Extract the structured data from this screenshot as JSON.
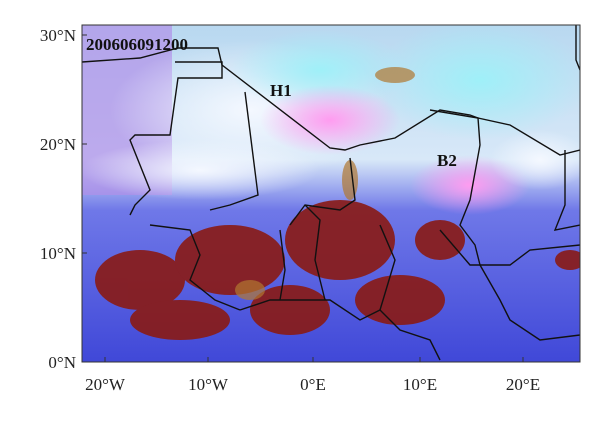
{
  "map": {
    "timestamp": "200606091200",
    "labels": [
      "H1",
      "B2"
    ],
    "lat_labels": [
      "30°N",
      "20°N",
      "10°N",
      "0°N"
    ],
    "lon_labels": [
      "20°W",
      "10°W",
      "0°E",
      "10°E",
      "20°E"
    ]
  }
}
